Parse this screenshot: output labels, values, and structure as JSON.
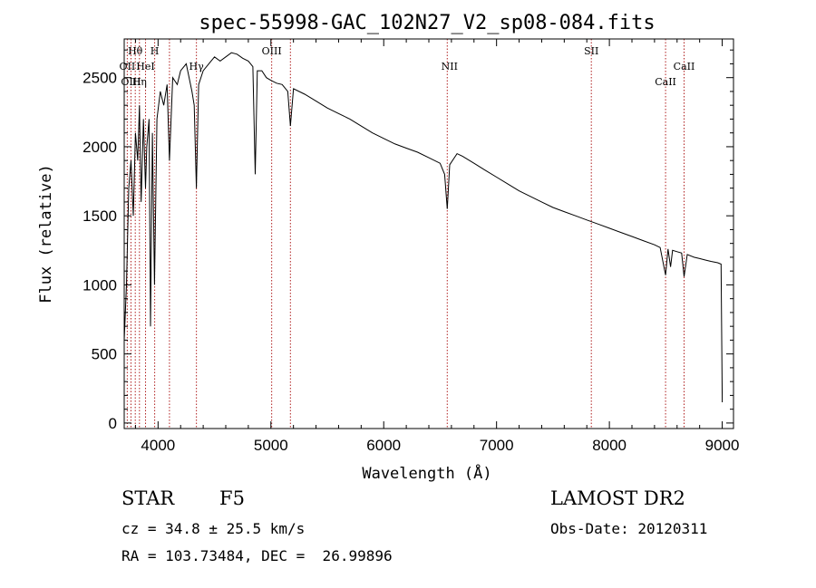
{
  "chart_data": {
    "type": "line",
    "title": "spec-55998-GAC_102N27_V2_sp08-084.fits",
    "xlabel": "Wavelength (Å)",
    "ylabel": "Flux (relative)",
    "xlim": [
      3700,
      9100
    ],
    "ylim": [
      -40,
      2780
    ],
    "x_ticks": [
      4000,
      5000,
      6000,
      7000,
      8000,
      9000
    ],
    "y_ticks": [
      0,
      500,
      1000,
      1500,
      2000,
      2500
    ],
    "series": [
      {
        "name": "flux",
        "x": [
          3700,
          3720,
          3740,
          3760,
          3780,
          3800,
          3820,
          3835,
          3850,
          3870,
          3889,
          3900,
          3920,
          3933,
          3950,
          3968,
          3990,
          4020,
          4050,
          4080,
          4101,
          4130,
          4170,
          4200,
          4250,
          4300,
          4320,
          4340,
          4360,
          4400,
          4450,
          4500,
          4550,
          4600,
          4650,
          4700,
          4750,
          4800,
          4840,
          4861,
          4880,
          4920,
          4960,
          5000,
          5050,
          5100,
          5150,
          5173,
          5200,
          5300,
          5400,
          5500,
          5600,
          5700,
          5800,
          5900,
          6000,
          6100,
          6200,
          6300,
          6400,
          6500,
          6540,
          6563,
          6585,
          6650,
          6700,
          6800,
          6900,
          7000,
          7100,
          7200,
          7300,
          7400,
          7500,
          7600,
          7700,
          7800,
          7900,
          8000,
          8100,
          8200,
          8300,
          8400,
          8450,
          8498,
          8520,
          8542,
          8560,
          8600,
          8640,
          8662,
          8690,
          8750,
          8800,
          8850,
          8900,
          8960,
          8990,
          9000
        ],
        "y": [
          600,
          1000,
          1700,
          1900,
          1500,
          2100,
          1900,
          2300,
          1600,
          2200,
          1700,
          2000,
          2200,
          700,
          2100,
          1000,
          2200,
          2400,
          2300,
          2450,
          1900,
          2500,
          2450,
          2550,
          2600,
          2400,
          2300,
          1700,
          2450,
          2550,
          2600,
          2650,
          2620,
          2650,
          2680,
          2670,
          2640,
          2620,
          2580,
          1800,
          2550,
          2550,
          2500,
          2480,
          2460,
          2450,
          2400,
          2150,
          2420,
          2380,
          2330,
          2280,
          2240,
          2200,
          2150,
          2100,
          2060,
          2020,
          1990,
          1960,
          1920,
          1880,
          1800,
          1550,
          1870,
          1950,
          1930,
          1880,
          1830,
          1780,
          1730,
          1680,
          1640,
          1600,
          1560,
          1530,
          1500,
          1470,
          1440,
          1410,
          1380,
          1350,
          1320,
          1290,
          1270,
          1070,
          1260,
          1130,
          1250,
          1240,
          1230,
          1060,
          1220,
          1200,
          1190,
          1180,
          1170,
          1160,
          1150,
          150
        ]
      }
    ],
    "lines": [
      {
        "name": "Hθ",
        "x": 3798,
        "label_row": 1
      },
      {
        "name": "H",
        "x": 3970,
        "label_row": 1
      },
      {
        "name": "OII",
        "x": 3727,
        "label_row": 2
      },
      {
        "name": "HeI",
        "x": 3889,
        "label_row": 2
      },
      {
        "name": "OIII",
        "x": 3760,
        "label_row": 3
      },
      {
        "name": "Hη",
        "x": 3835,
        "label_row": 3
      },
      {
        "name": "Hγ",
        "x": 4340,
        "label_row": 2
      },
      {
        "name": "OIII",
        "x": 5007,
        "label_row": 1
      },
      {
        "name": "NII",
        "x": 6583,
        "label_row": 2
      },
      {
        "name": "SII",
        "x": 7840,
        "label_row": 1
      },
      {
        "name": "CaII",
        "x": 8662,
        "label_row": 2
      },
      {
        "name": "CaII",
        "x": 8498,
        "label_row": 3
      }
    ],
    "guide_lines_x": [
      3727,
      3760,
      3798,
      3835,
      3889,
      3970,
      4101,
      4340,
      5007,
      5173,
      6563,
      7840,
      8498,
      8662
    ]
  },
  "info": {
    "object_class": "STAR",
    "subclass": "F5",
    "survey": "LAMOST DR2",
    "velocity": "cz = 34.8 ± 25.5 km/s",
    "obs_date": "Obs-Date: 20120311",
    "coords": "RA = 103.73484, DEC =  26.99896"
  },
  "colors": {
    "spectrum": "#000000",
    "guide": "#b02020"
  }
}
